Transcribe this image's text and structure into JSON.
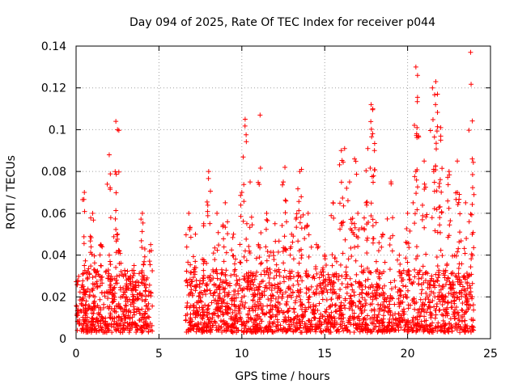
{
  "chart_data": {
    "type": "scatter",
    "title": "Day 094 of 2025, Rate Of TEC Index for receiver p044",
    "xlabel": "GPS time / hours",
    "ylabel": "ROTI / TECUs",
    "xlim": [
      0,
      25
    ],
    "ylim": [
      0,
      0.14
    ],
    "xticks": [
      0,
      5,
      10,
      15,
      20,
      25
    ],
    "xtick_labels": [
      "0",
      "5",
      "10",
      "15",
      "20",
      "25"
    ],
    "yticks": [
      0,
      0.02,
      0.04,
      0.06,
      0.08,
      0.1,
      0.12,
      0.14
    ],
    "ytick_labels": [
      "0",
      "0.02",
      "0.04",
      "0.06",
      "0.08",
      "0.1",
      "0.12",
      "0.14"
    ],
    "grid": true,
    "marker": "+",
    "color": "#ff0000",
    "data_gap_hours": [
      4.6,
      6.6
    ],
    "series": [
      {
        "name": "ROTI",
        "x": [
          0.5,
          1.0,
          1.5,
          2.0,
          2.5,
          3.0,
          3.5,
          4.0,
          4.5,
          6.8,
          7.2,
          7.7,
          8.0,
          8.5,
          9.0,
          9.5,
          10.0,
          10.3,
          10.5,
          11.0,
          11.5,
          12.0,
          12.5,
          13.0,
          13.5,
          14.0,
          14.5,
          15.0,
          15.5,
          16.0,
          16.5,
          17.0,
          17.5,
          18.0,
          18.5,
          19.0,
          19.5,
          20.0,
          20.5,
          21.0,
          21.5,
          22.0,
          22.5,
          23.0,
          23.5,
          23.9,
          2.0,
          2.4,
          2.5,
          10.2,
          11.1,
          12.6,
          13.6,
          16.2,
          16.8,
          17.8,
          17.9,
          20.5,
          20.6,
          21.7,
          21.8,
          22.0,
          23.0,
          23.8,
          23.9,
          0.5,
          17.6
        ],
        "y": [
          0.035,
          0.06,
          0.045,
          0.04,
          0.05,
          0.03,
          0.035,
          0.06,
          0.045,
          0.06,
          0.05,
          0.055,
          0.08,
          0.06,
          0.065,
          0.05,
          0.07,
          0.055,
          0.075,
          0.045,
          0.06,
          0.055,
          0.075,
          0.05,
          0.08,
          0.06,
          0.045,
          0.04,
          0.065,
          0.09,
          0.075,
          0.06,
          0.065,
          0.09,
          0.05,
          0.075,
          0.04,
          0.06,
          0.08,
          0.085,
          0.12,
          0.095,
          0.08,
          0.07,
          0.065,
          0.05,
          0.088,
          0.104,
          0.1,
          0.105,
          0.107,
          0.082,
          0.081,
          0.091,
          0.086,
          0.112,
          0.11,
          0.13,
          0.126,
          0.123,
          0.117,
          0.101,
          0.085,
          0.137,
          0.086,
          0.07,
          0.091
        ]
      }
    ]
  }
}
